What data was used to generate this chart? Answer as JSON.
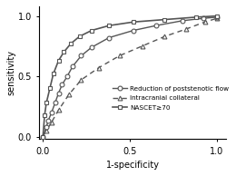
{
  "title": "",
  "xlabel": "1-specificity",
  "ylabel": "sensitivity",
  "xlim": [
    -0.02,
    1.05
  ],
  "ylim": [
    -0.02,
    1.08
  ],
  "xticks": [
    0,
    0.5,
    1
  ],
  "yticks": [
    0,
    0.5,
    1
  ],
  "curve1_x": [
    0,
    0.02,
    0.03,
    0.05,
    0.07,
    0.09,
    0.11,
    0.14,
    0.17,
    0.22,
    0.28,
    0.38,
    0.52,
    0.65,
    0.8,
    0.92,
    1.0
  ],
  "curve1_y": [
    0,
    0.08,
    0.13,
    0.2,
    0.28,
    0.36,
    0.43,
    0.5,
    0.58,
    0.67,
    0.74,
    0.82,
    0.88,
    0.92,
    0.96,
    0.98,
    0.99
  ],
  "curve1_label": "Reduction of poststenotic flow",
  "curve1_color": "#555555",
  "curve1_marker": "o",
  "curve1_linestyle": "-",
  "curve2_x": [
    0,
    0.02,
    0.05,
    0.09,
    0.15,
    0.22,
    0.32,
    0.44,
    0.57,
    0.7,
    0.82,
    0.93,
    1.0
  ],
  "curve2_y": [
    0,
    0.05,
    0.12,
    0.22,
    0.35,
    0.47,
    0.57,
    0.67,
    0.75,
    0.83,
    0.89,
    0.95,
    0.98
  ],
  "curve2_label": "Intracranial collateral",
  "curve2_color": "#555555",
  "curve2_marker": "^",
  "curve2_linestyle": "--",
  "curve3_x": [
    0,
    0.01,
    0.02,
    0.04,
    0.06,
    0.09,
    0.12,
    0.16,
    0.21,
    0.28,
    0.38,
    0.52,
    0.7,
    0.88,
    1.0
  ],
  "curve3_y": [
    0,
    0.18,
    0.28,
    0.4,
    0.52,
    0.63,
    0.7,
    0.77,
    0.83,
    0.88,
    0.92,
    0.95,
    0.97,
    0.99,
    1.0
  ],
  "curve3_label": "NASCET≥70",
  "curve3_color": "#555555",
  "curve3_marker": "s",
  "curve3_linestyle": "-"
}
